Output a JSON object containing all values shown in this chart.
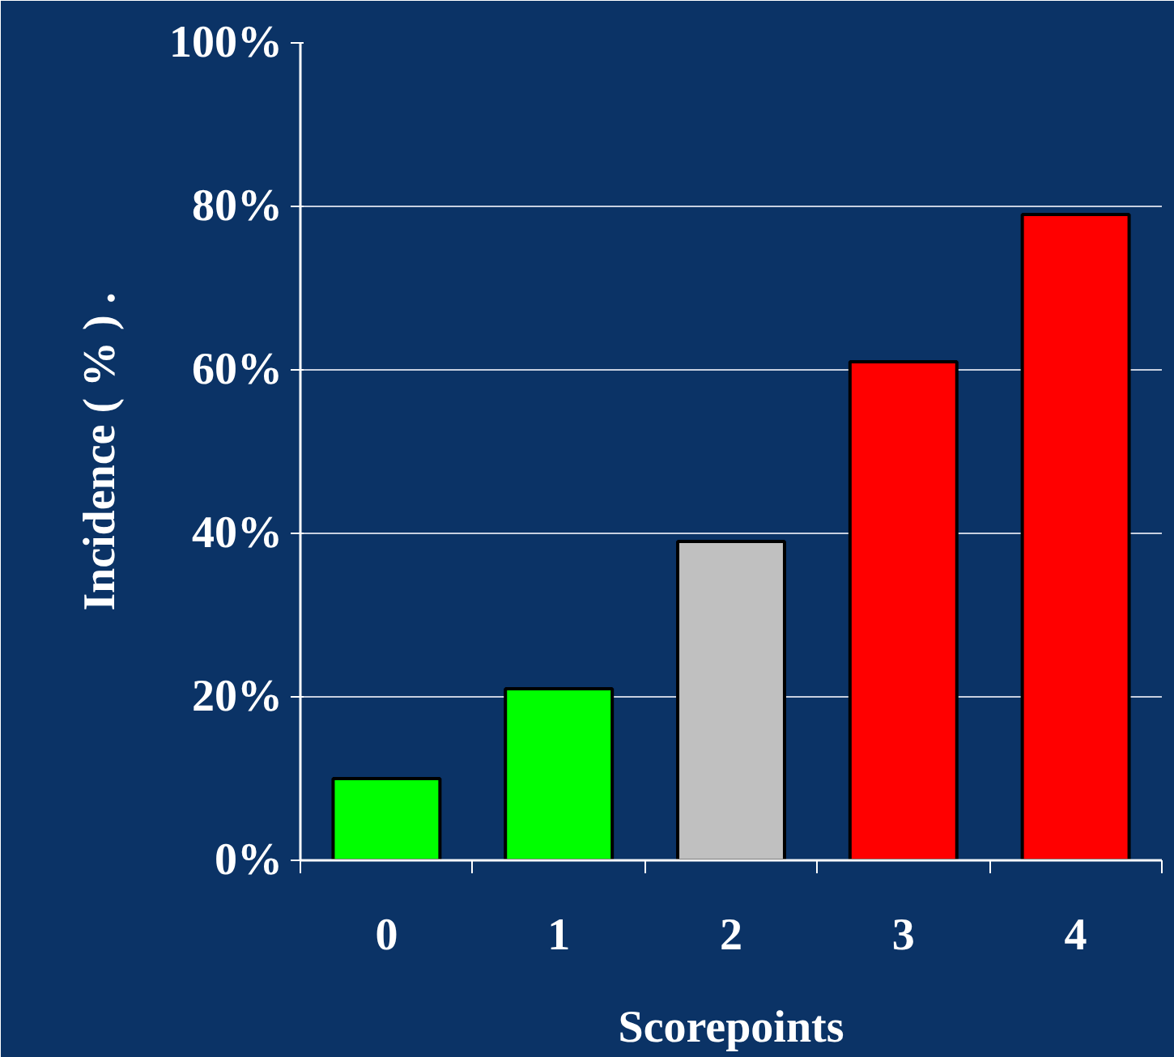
{
  "chart_data": {
    "type": "bar",
    "xlabel": "Scorepoints",
    "ylabel": "Incidence ( % ) .",
    "categories": [
      "0",
      "1",
      "2",
      "3",
      "4"
    ],
    "values": [
      10,
      21,
      39,
      61,
      79
    ],
    "colors": [
      "#00ff00",
      "#00ff00",
      "#c0c0c0",
      "#ff0000",
      "#ff0000"
    ],
    "ylim": [
      0,
      100
    ],
    "yticks": [
      {
        "value": 0,
        "label": "0%"
      },
      {
        "value": 20,
        "label": "20%"
      },
      {
        "value": 40,
        "label": "40%"
      },
      {
        "value": 60,
        "label": "60%"
      },
      {
        "value": 80,
        "label": "80%"
      },
      {
        "value": 100,
        "label": "100%"
      }
    ],
    "grid": "y"
  }
}
